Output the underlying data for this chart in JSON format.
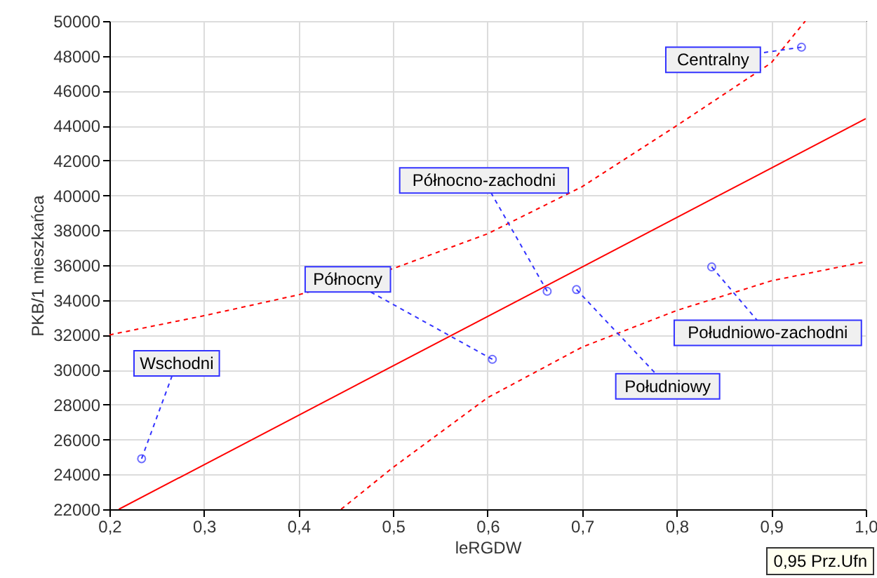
{
  "chart_data": {
    "type": "scatter",
    "xlabel": "leRGDW",
    "ylabel": "PKB/1 mieszkańca",
    "xlim": [
      0.2,
      1.0
    ],
    "ylim": [
      22000,
      50000
    ],
    "xticks": [
      {
        "value": 0.2,
        "label": "0,2"
      },
      {
        "value": 0.3,
        "label": "0,3"
      },
      {
        "value": 0.4,
        "label": "0,4"
      },
      {
        "value": 0.5,
        "label": "0,5"
      },
      {
        "value": 0.6,
        "label": "0,6"
      },
      {
        "value": 0.7,
        "label": "0,7"
      },
      {
        "value": 0.8,
        "label": "0,8"
      },
      {
        "value": 0.9,
        "label": "0,9"
      },
      {
        "value": 1.0,
        "label": "1,0"
      }
    ],
    "yticks": [
      22000,
      24000,
      26000,
      28000,
      30000,
      32000,
      34000,
      36000,
      38000,
      40000,
      42000,
      44000,
      46000,
      48000,
      50000
    ],
    "grid": true,
    "series": [
      {
        "marker": "circle",
        "color": "#3333ff",
        "x": [
          0.234,
          0.605,
          0.663,
          0.694,
          0.837,
          0.932
        ],
        "values": [
          24900,
          30600,
          34500,
          34600,
          35900,
          48500
        ]
      },
      {
        "type": "line",
        "color": "#ff0000",
        "line_style": "solid",
        "x": [
          0.21,
          1.0
        ],
        "values": [
          22000,
          44400
        ]
      },
      {
        "type": "line",
        "color": "#ff0000",
        "line_style": "dashed",
        "x": [
          0.2,
          0.3,
          0.4,
          0.5,
          0.6,
          0.7,
          0.8,
          0.9,
          0.936
        ],
        "values": [
          32000,
          33100,
          34300,
          35800,
          37800,
          40500,
          44000,
          47600,
          50000
        ]
      },
      {
        "type": "line",
        "color": "#ff0000",
        "line_style": "dashed",
        "x": [
          0.445,
          0.5,
          0.6,
          0.7,
          0.8,
          0.9,
          1.0
        ],
        "values": [
          22000,
          24400,
          28400,
          31300,
          33400,
          35100,
          36200
        ]
      }
    ],
    "annotations": [
      {
        "text": "Wschodni",
        "x": 0.234,
        "y": 24900
      },
      {
        "text": "Północny",
        "x": 0.605,
        "y": 30600
      },
      {
        "text": "Północno-zachodni",
        "x": 0.663,
        "y": 34500
      },
      {
        "text": "Południowy",
        "x": 0.694,
        "y": 34600
      },
      {
        "text": "Południowo-zachodni",
        "x": 0.837,
        "y": 35900
      },
      {
        "text": "Centralny",
        "x": 0.932,
        "y": 48500
      },
      "0,95 Prz.Ufn"
    ]
  }
}
